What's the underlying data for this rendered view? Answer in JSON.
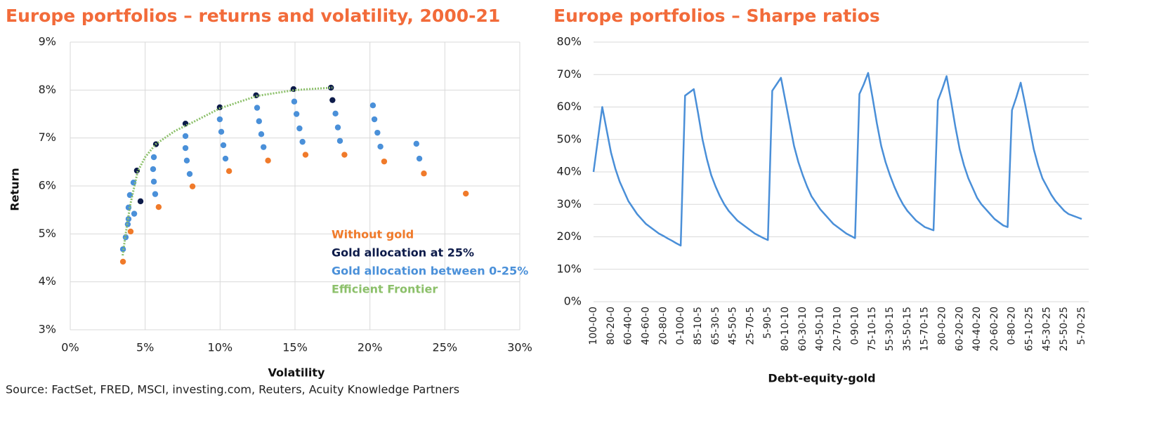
{
  "source": "Source: FactSet, FRED, MSCI, investing.com, Reuters, Acuity Knowledge Partners",
  "chart_data": [
    {
      "type": "scatter",
      "title": "Europe portfolios – returns and volatility, 2000-21",
      "xlabel": "Volatility",
      "ylabel": "Return",
      "xlim": [
        0,
        30
      ],
      "xticks": [
        {
          "value": 0,
          "label": "0%"
        },
        {
          "value": 5,
          "label": "5%"
        },
        {
          "value": 10,
          "label": "10%"
        },
        {
          "value": 15,
          "label": "15%"
        },
        {
          "value": 20,
          "label": "20%"
        },
        {
          "value": 25,
          "label": "25%"
        },
        {
          "value": 30,
          "label": "30%"
        }
      ],
      "ylim": [
        3,
        9
      ],
      "yticks": [
        {
          "value": 3,
          "label": "3%"
        },
        {
          "value": 4,
          "label": "4%"
        },
        {
          "value": 5,
          "label": "5%"
        },
        {
          "value": 6,
          "label": "6%"
        },
        {
          "value": 7,
          "label": "7%"
        },
        {
          "value": 8,
          "label": "8%"
        },
        {
          "value": 9,
          "label": "9%"
        }
      ],
      "grid": true,
      "legend": "lower right",
      "series": [
        {
          "name": "Without gold",
          "color": "#f07a2a",
          "x": [
            3.52,
            4.03,
            5.9,
            8.16,
            10.6,
            13.2,
            15.7,
            18.3,
            20.95,
            23.6,
            26.4
          ],
          "values": [
            4.42,
            5.05,
            5.56,
            5.99,
            6.31,
            6.53,
            6.65,
            6.65,
            6.51,
            6.26,
            5.84
          ]
        },
        {
          "name": "Gold allocation at 25%",
          "color": "#0d1b4a",
          "x": [
            4.45,
            4.69,
            5.72,
            7.69,
            9.98,
            12.4,
            14.9,
            17.4,
            17.5
          ],
          "values": [
            6.32,
            5.68,
            6.87,
            7.3,
            7.64,
            7.89,
            8.02,
            8.05,
            7.79
          ]
        },
        {
          "name": "Gold allocation between 0-25%",
          "color": "#4a90d9",
          "x": [
            3.52,
            3.7,
            3.84,
            3.89,
            3.89,
            3.98,
            4.22,
            4.27,
            5.58,
            5.53,
            5.58,
            5.67,
            7.69,
            7.69,
            7.78,
            7.97,
            9.98,
            10.08,
            10.22,
            10.36,
            12.47,
            12.6,
            12.75,
            12.9,
            14.95,
            15.1,
            15.3,
            15.5,
            17.7,
            17.86,
            18.0,
            20.2,
            20.3,
            20.5,
            20.7,
            23.1,
            23.3
          ],
          "values": [
            4.68,
            4.93,
            5.2,
            5.31,
            5.55,
            5.81,
            6.07,
            5.42,
            6.6,
            6.35,
            6.09,
            5.83,
            7.04,
            6.79,
            6.53,
            6.25,
            7.39,
            7.13,
            6.85,
            6.57,
            7.63,
            7.35,
            7.08,
            6.81,
            7.76,
            7.5,
            7.2,
            6.92,
            7.51,
            7.22,
            6.94,
            7.68,
            7.39,
            7.11,
            6.82,
            6.88,
            6.57
          ]
        },
        {
          "name": "Efficient Frontier",
          "color": "#8cc06a",
          "line": true,
          "x": [
            3.5,
            3.7,
            4.0,
            4.5,
            5.0,
            5.7,
            7,
            8,
            10,
            12.5,
            15,
            17.5
          ],
          "values": [
            4.55,
            5.0,
            5.6,
            6.3,
            6.6,
            6.87,
            7.15,
            7.3,
            7.62,
            7.88,
            8.0,
            8.05
          ]
        }
      ]
    },
    {
      "type": "line",
      "title": "Europe portfolios – Sharpe ratios",
      "xlabel": "Debt-equity-gold",
      "ylim": [
        0,
        80
      ],
      "yticks": [
        {
          "value": 0,
          "label": "0%"
        },
        {
          "value": 10,
          "label": "10%"
        },
        {
          "value": 20,
          "label": "20%"
        },
        {
          "value": 30,
          "label": "30%"
        },
        {
          "value": 40,
          "label": "40%"
        },
        {
          "value": 50,
          "label": "50%"
        },
        {
          "value": 60,
          "label": "60%"
        },
        {
          "value": 70,
          "label": "70%"
        },
        {
          "value": 80,
          "label": "80%"
        }
      ],
      "grid": true,
      "color": "#4a8fd8",
      "categories": [
        "100-0-0",
        null,
        null,
        null,
        "80-20-0",
        null,
        null,
        null,
        "60-40-0",
        null,
        null,
        null,
        "40-60-0",
        null,
        null,
        null,
        "20-80-0",
        null,
        null,
        null,
        "0-100-0",
        null,
        null,
        null,
        "85-10-5",
        null,
        null,
        null,
        "65-30-5",
        null,
        null,
        null,
        "45-50-5",
        null,
        null,
        null,
        "25-70-5",
        null,
        null,
        null,
        "5-90-5",
        null,
        null,
        null,
        "80-10-10",
        null,
        null,
        null,
        "60-30-10",
        null,
        null,
        null,
        "40-50-10",
        null,
        null,
        null,
        "20-70-10",
        null,
        null,
        null,
        "0-90-10",
        null,
        null,
        null,
        "75-10-15",
        null,
        null,
        null,
        "55-30-15",
        null,
        null,
        null,
        "35-50-15",
        null,
        null,
        null,
        "15-70-15",
        null,
        null,
        null,
        "80-0-20",
        null,
        null,
        null,
        "60-20-20",
        null,
        null,
        null,
        "40-40-20",
        null,
        null,
        null,
        "20-60-20",
        null,
        null,
        null,
        "0-80-20",
        null,
        null,
        null,
        "65-10-25",
        null,
        null,
        null,
        "45-30-25",
        null,
        null,
        null,
        "25-50-25",
        null,
        null,
        null,
        "5-70-25"
      ],
      "values": [
        40,
        50,
        60,
        53,
        46,
        41,
        37,
        34,
        31,
        29,
        27,
        25.5,
        24,
        23,
        22,
        21,
        20.3,
        19.5,
        18.8,
        18,
        17.3,
        63.5,
        64.5,
        65.5,
        58,
        50,
        44,
        39,
        35.5,
        32.5,
        30,
        28,
        26.5,
        25,
        24,
        23,
        22,
        21,
        20.3,
        19.6,
        19,
        65,
        67,
        69,
        62,
        55,
        48,
        43,
        39,
        35.5,
        32.5,
        30.5,
        28.5,
        27,
        25.5,
        24,
        23,
        22,
        21,
        20.3,
        19.6,
        64,
        67,
        70.5,
        63,
        55,
        48,
        43,
        39,
        35.5,
        32.5,
        30,
        28,
        26.5,
        25,
        24,
        23,
        22.5,
        22,
        62,
        65.5,
        69.5,
        62,
        54,
        47,
        42,
        38,
        35,
        32,
        30,
        28.5,
        27,
        25.5,
        24.5,
        23.5,
        23,
        59,
        63,
        67.5,
        61,
        54,
        47,
        42,
        38,
        35.5,
        33,
        31,
        29.5,
        28,
        27,
        26.5,
        26,
        25.5
      ]
    }
  ]
}
